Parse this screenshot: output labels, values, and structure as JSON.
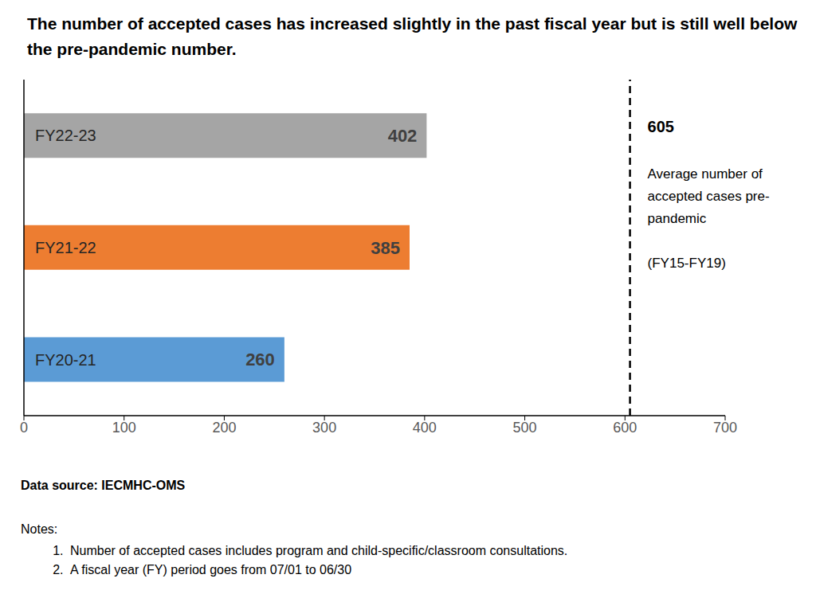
{
  "chart_data": {
    "type": "bar",
    "orientation": "horizontal",
    "title": "The number of accepted cases has increased slightly in the past fiscal year but is still well below the pre-pandemic number.",
    "categories": [
      "FY22-23",
      "FY21-22",
      "FY20-21"
    ],
    "values": [
      402,
      385,
      260
    ],
    "colors": [
      "#a5a5a5",
      "#ed7d31",
      "#5b9bd5"
    ],
    "xlim": [
      0,
      700
    ],
    "xticks": [
      0,
      100,
      200,
      300,
      400,
      500,
      600,
      700
    ],
    "grid": false,
    "data_labels": true,
    "tick_labels": "x",
    "reference_line": {
      "value": 605,
      "line_style": "dashed",
      "text_lines": [
        "Average number of",
        "accepted cases pre-",
        "pandemic"
      ],
      "period": "(FY15-FY19)"
    },
    "annotations": {
      "source": "Data source: IECMHC-OMS",
      "notes_title": "Notes:",
      "notes": [
        "Number of accepted cases includes program and child-specific/classroom consultations.",
        "A fiscal year (FY) period goes from 07/01 to 06/30"
      ]
    }
  }
}
